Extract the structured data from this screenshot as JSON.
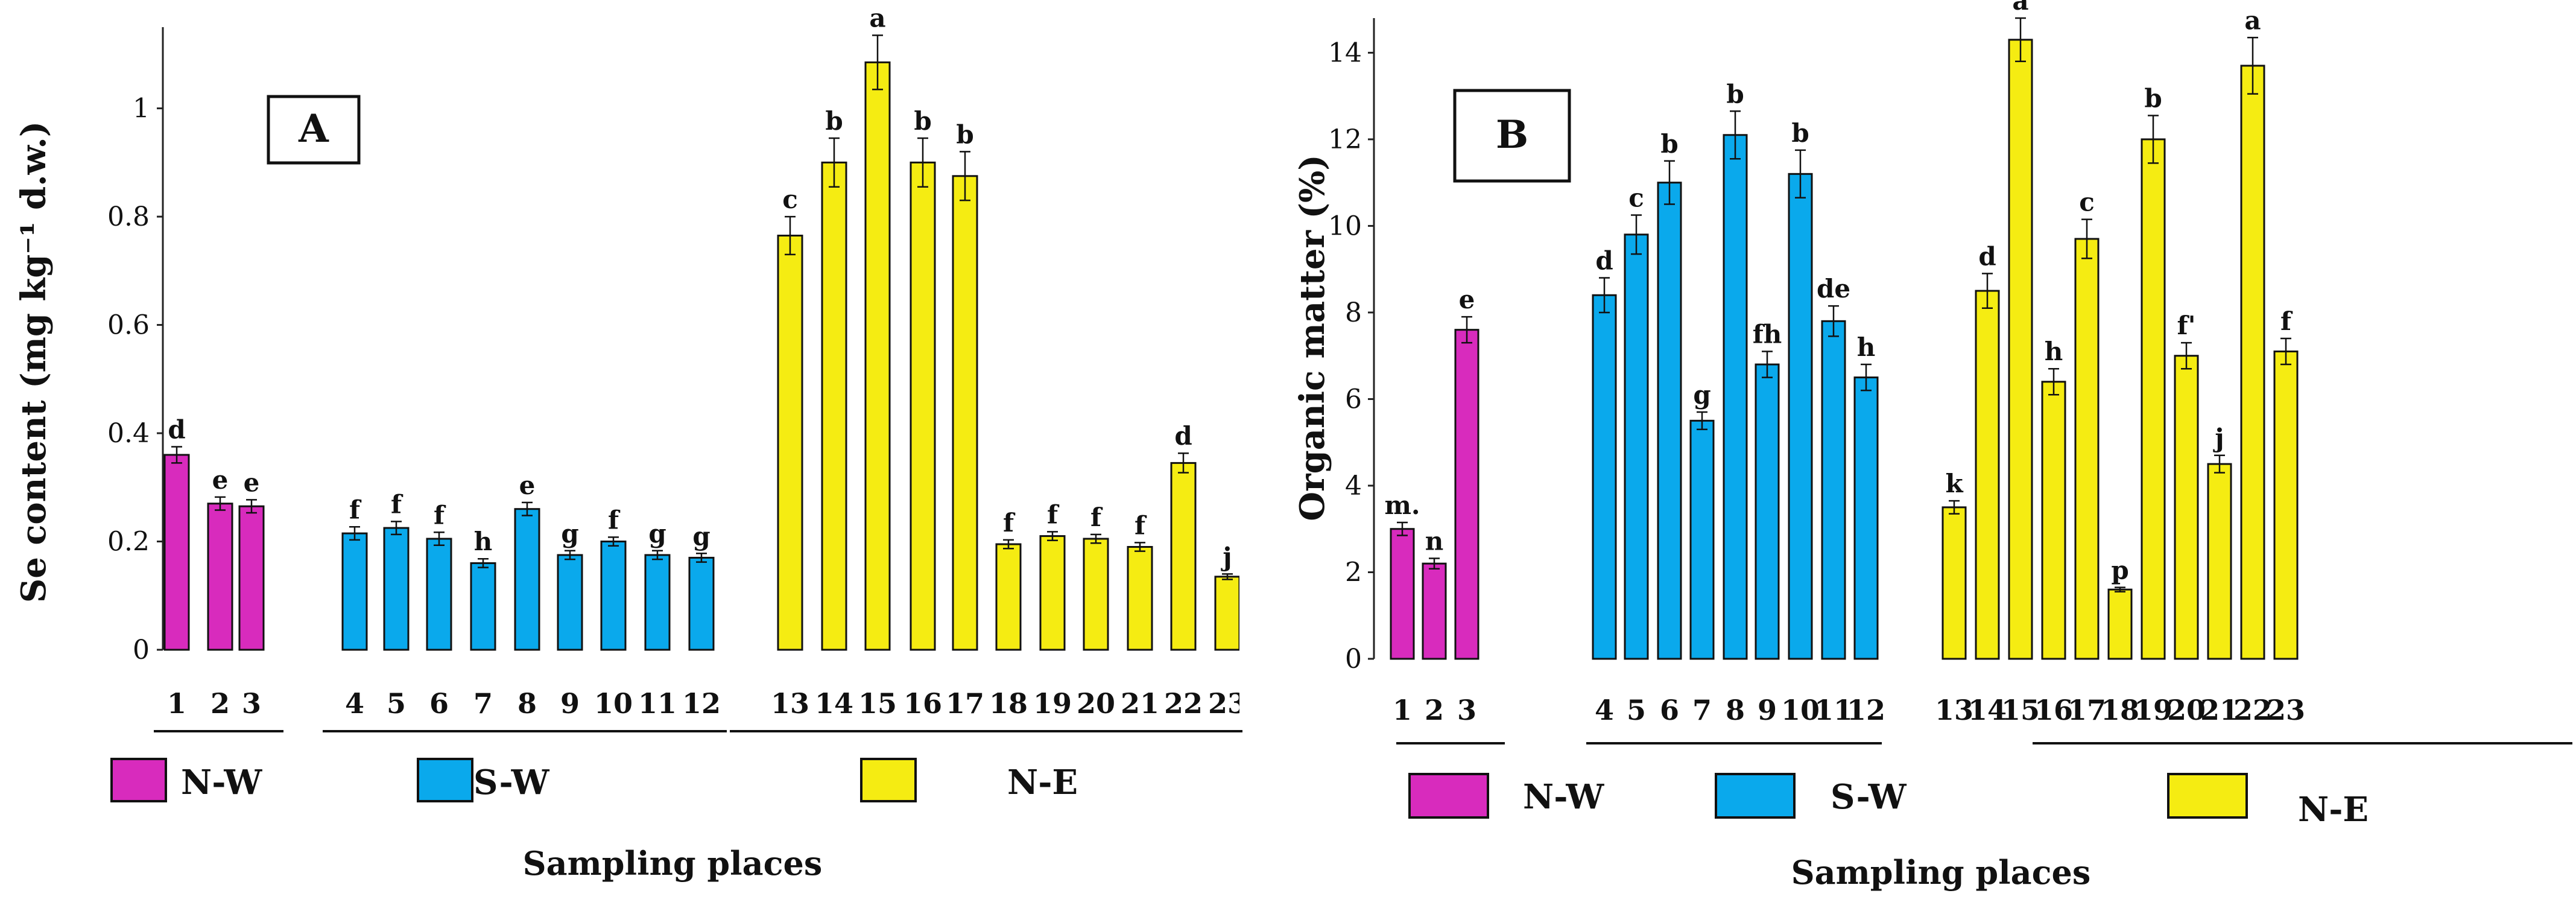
{
  "colors": {
    "N-W": "#d82bbd",
    "S-W": "#0aa9ec",
    "N-E": "#f5ec12"
  },
  "legend": [
    {
      "label": "N-W",
      "group": "N-W"
    },
    {
      "label": "S-W",
      "group": "S-W"
    },
    {
      "label": "N-E",
      "group": "N-E"
    }
  ],
  "chart_data": [
    {
      "type": "bar",
      "panel_label": "A",
      "title": "",
      "xlabel": "Sampling places",
      "ylabel": "Se content (mg kg⁻¹ d.w.)",
      "ylim": [
        0,
        1.15
      ],
      "yticks": [
        "0",
        "0.2",
        "0.4",
        "0.6",
        "0.8",
        "1"
      ],
      "ytick_values": [
        0,
        0.2,
        0.4,
        0.6,
        0.8,
        1.0
      ],
      "categories": [
        "1",
        "2",
        "3",
        "4",
        "5",
        "6",
        "7",
        "8",
        "9",
        "10",
        "11",
        "12",
        "13",
        "14",
        "15",
        "16",
        "17",
        "18",
        "19",
        "20",
        "21",
        "22",
        "23"
      ],
      "groups": [
        "N-W",
        "N-W",
        "N-W",
        "S-W",
        "S-W",
        "S-W",
        "S-W",
        "S-W",
        "S-W",
        "S-W",
        "S-W",
        "S-W",
        "N-E",
        "N-E",
        "N-E",
        "N-E",
        "N-E",
        "N-E",
        "N-E",
        "N-E",
        "N-E",
        "N-E",
        "N-E"
      ],
      "values": [
        0.36,
        0.27,
        0.265,
        0.215,
        0.225,
        0.205,
        0.16,
        0.26,
        0.175,
        0.2,
        0.175,
        0.17,
        0.765,
        0.9,
        1.085,
        0.9,
        0.875,
        0.195,
        0.21,
        0.205,
        0.19,
        0.345,
        0.135
      ],
      "errors": [
        0.015,
        0.012,
        0.012,
        0.012,
        0.012,
        0.012,
        0.008,
        0.012,
        0.008,
        0.008,
        0.008,
        0.008,
        0.035,
        0.045,
        0.05,
        0.045,
        0.045,
        0.008,
        0.008,
        0.008,
        0.008,
        0.018,
        0.005
      ],
      "significance": [
        "d",
        "e",
        "e",
        "f",
        "f",
        "f",
        "h",
        "e",
        "g",
        "f",
        "g",
        "g",
        "c",
        "b",
        "a",
        "b",
        "b",
        "f",
        "f",
        "f",
        "f",
        "d",
        "j"
      ]
    },
    {
      "type": "bar",
      "panel_label": "B",
      "title": "",
      "xlabel": "Sampling places",
      "ylabel": "Organic matter (%)",
      "ylim": [
        0,
        14.8
      ],
      "yticks": [
        "0",
        "2",
        "4",
        "6",
        "8",
        "10",
        "12",
        "14"
      ],
      "ytick_values": [
        0,
        2,
        4,
        6,
        8,
        10,
        12,
        14
      ],
      "categories": [
        "1",
        "2",
        "3",
        "4",
        "5",
        "6",
        "7",
        "8",
        "9",
        "10",
        "11",
        "12",
        "13",
        "14",
        "15",
        "16",
        "17",
        "18",
        "19",
        "20",
        "21",
        "22",
        "23"
      ],
      "groups": [
        "N-W",
        "N-W",
        "N-W",
        "S-W",
        "S-W",
        "S-W",
        "S-W",
        "S-W",
        "S-W",
        "S-W",
        "S-W",
        "S-W",
        "N-E",
        "N-E",
        "N-E",
        "N-E",
        "N-E",
        "N-E",
        "N-E",
        "N-E",
        "N-E",
        "N-E",
        "N-E"
      ],
      "values": [
        3.0,
        2.2,
        7.6,
        8.4,
        9.8,
        11.0,
        5.5,
        12.1,
        6.8,
        11.2,
        7.8,
        6.5,
        3.5,
        8.5,
        14.3,
        6.4,
        9.7,
        1.6,
        12.0,
        7.0,
        4.5,
        13.7,
        7.1
      ],
      "errors": [
        0.15,
        0.12,
        0.3,
        0.4,
        0.45,
        0.5,
        0.2,
        0.55,
        0.3,
        0.55,
        0.35,
        0.3,
        0.15,
        0.4,
        0.5,
        0.3,
        0.45,
        0.05,
        0.55,
        0.3,
        0.2,
        0.65,
        0.3
      ],
      "significance": [
        "m.",
        "n",
        "e",
        "d",
        "c",
        "b",
        "g",
        "b",
        "fh",
        "b",
        "de",
        "h",
        "k",
        "d",
        "a",
        "h",
        "c",
        "p",
        "b",
        "f'",
        "j",
        "a",
        "f"
      ]
    }
  ]
}
